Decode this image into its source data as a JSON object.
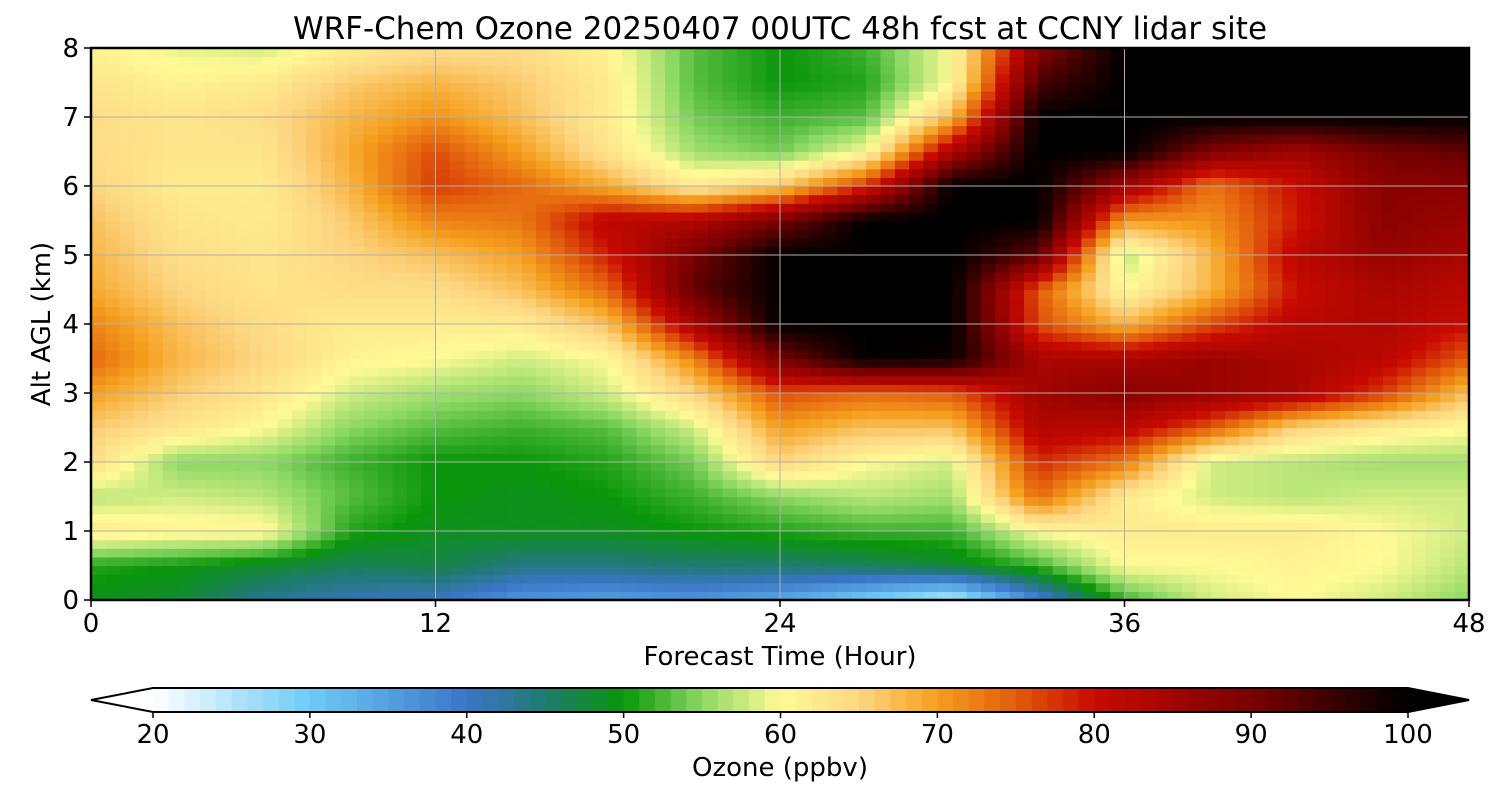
{
  "chart_data": {
    "type": "heatmap",
    "title": "WRF-Chem Ozone  20250407 00UTC 48h fcst at CCNY lidar site",
    "xlabel": "Forecast Time (Hour)",
    "ylabel": "Alt AGL (km)",
    "xlim": [
      0,
      48
    ],
    "ylim": [
      0,
      8
    ],
    "xticks": [
      0,
      12,
      24,
      36,
      48
    ],
    "yticks": [
      0,
      1,
      2,
      3,
      4,
      5,
      6,
      7,
      8
    ],
    "grid": true,
    "x": [
      0,
      3,
      6,
      9,
      12,
      15,
      18,
      21,
      24,
      27,
      30,
      33,
      36,
      39,
      42,
      45,
      48
    ],
    "y": [
      0,
      0.5,
      1,
      1.5,
      2,
      2.5,
      3,
      3.5,
      4,
      4.5,
      5,
      5.5,
      6,
      6.5,
      7,
      7.5,
      8
    ],
    "z": [
      [
        49,
        48,
        43,
        41,
        40,
        36,
        35,
        36,
        34,
        29,
        24,
        38,
        52,
        58,
        60,
        58,
        55
      ],
      [
        51,
        50,
        48,
        46,
        47,
        44,
        44,
        45,
        45,
        46,
        48,
        52,
        60,
        60,
        61,
        60,
        57
      ],
      [
        62,
        61,
        61,
        51,
        49,
        49,
        49,
        50,
        51,
        52,
        52,
        60,
        62,
        62,
        62,
        60,
        58
      ],
      [
        57,
        58,
        57,
        53,
        50,
        49,
        50,
        52,
        55,
        57,
        56,
        74,
        62,
        58,
        57,
        58,
        58
      ],
      [
        64,
        55,
        55,
        52,
        50,
        50,
        51,
        54,
        65,
        60,
        58,
        78,
        73,
        58,
        57,
        56,
        56
      ],
      [
        66,
        63,
        60,
        55,
        53,
        52,
        53,
        58,
        70,
        67,
        67,
        83,
        82,
        75,
        65,
        62,
        60
      ],
      [
        70,
        66,
        63,
        58,
        56,
        55,
        58,
        65,
        76,
        74,
        75,
        85,
        88,
        86,
        84,
        77,
        67
      ],
      [
        74,
        68,
        65,
        61,
        60,
        58,
        60,
        72,
        90,
        100,
        99,
        84,
        84,
        86,
        84,
        82,
        75
      ],
      [
        72,
        67,
        64,
        62,
        62,
        62,
        67,
        84,
        100,
        100,
        100,
        76,
        68,
        76,
        82,
        83,
        80
      ],
      [
        69,
        65,
        63,
        64,
        64,
        67,
        74,
        92,
        100,
        100,
        100,
        75,
        60,
        68,
        80,
        84,
        82
      ],
      [
        68,
        64,
        63,
        65,
        67,
        70,
        79,
        90,
        100,
        100,
        100,
        92,
        57,
        68,
        82,
        86,
        84
      ],
      [
        67,
        63,
        62,
        66,
        72,
        73,
        82,
        83,
        90,
        100,
        100,
        100,
        70,
        71,
        79,
        88,
        86
      ],
      [
        65,
        62,
        62,
        68,
        77,
        74,
        69,
        62,
        66,
        78,
        100,
        100,
        85,
        73,
        80,
        88,
        88
      ],
      [
        64,
        63,
        63,
        69,
        76,
        70,
        63,
        56,
        54,
        60,
        84,
        100,
        100,
        89,
        85,
        90,
        92
      ],
      [
        64,
        63,
        64,
        68,
        71,
        67,
        62,
        54,
        52,
        53,
        68,
        100,
        100,
        100,
        100,
        100,
        100
      ],
      [
        63,
        61,
        62,
        66,
        68,
        66,
        62,
        53,
        50,
        51,
        60,
        94,
        100,
        100,
        100,
        100,
        100
      ],
      [
        61,
        59,
        58,
        62,
        64,
        64,
        61,
        53,
        50,
        52,
        60,
        88,
        100,
        100,
        100,
        100,
        100
      ]
    ],
    "colorbar": {
      "label": "Ozone  (ppbv)",
      "min": 20,
      "max": 100,
      "ticks": [
        20,
        30,
        40,
        50,
        60,
        70,
        80,
        90,
        100
      ],
      "extend": "both",
      "stops": [
        {
          "v": 20,
          "c": "#ffffff"
        },
        {
          "v": 30,
          "c": "#6ecbf5"
        },
        {
          "v": 40,
          "c": "#3a75c7"
        },
        {
          "v": 45,
          "c": "#1f7a70"
        },
        {
          "v": 50,
          "c": "#0a960a"
        },
        {
          "v": 55,
          "c": "#8cd864"
        },
        {
          "v": 60,
          "c": "#fffa96"
        },
        {
          "v": 65,
          "c": "#fdd682"
        },
        {
          "v": 70,
          "c": "#f59f1e"
        },
        {
          "v": 75,
          "c": "#e25c0c"
        },
        {
          "v": 80,
          "c": "#c80a00"
        },
        {
          "v": 90,
          "c": "#7a0000"
        },
        {
          "v": 100,
          "c": "#000000"
        }
      ]
    }
  }
}
